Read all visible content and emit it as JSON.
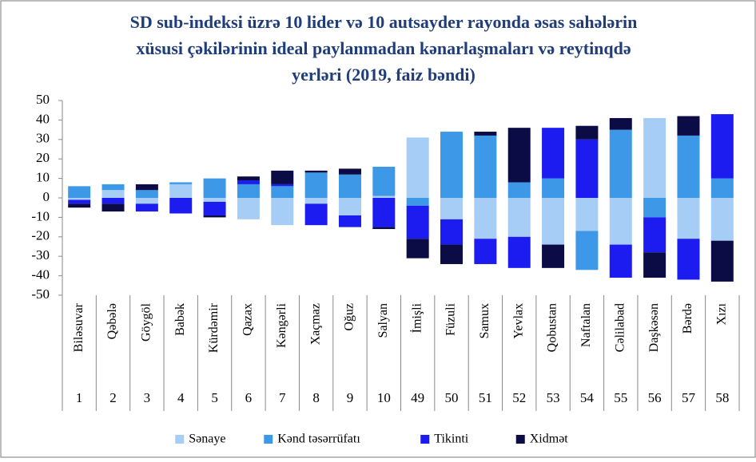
{
  "chart_data": {
    "type": "stacked_bar",
    "title": [
      "SD sub-indeksi üzrə 10 lider və 10 autsayder rayonda əsas sahələrin",
      "xüsusi çəkilərinin ideal paylanmadan kənarlaşmaları və reytinqdə",
      "yerləri (2019, faiz bəndi)"
    ],
    "categories": [
      "Biləsuvar",
      "Qəbələ",
      "Göygöl",
      "Babək",
      "Kürdəmir",
      "Qazax",
      "Kəngərli",
      "Xaçmaz",
      "Oğuz",
      "Salyan",
      "İmişli",
      "Füzuli",
      "Samux",
      "Yevlax",
      "Qobustan",
      "Naftalan",
      "Cəlilabad",
      "Daşkəsən",
      "Bərdə",
      "Xızı"
    ],
    "ranks": [
      1,
      2,
      3,
      4,
      5,
      6,
      7,
      8,
      9,
      10,
      49,
      50,
      51,
      52,
      53,
      54,
      55,
      56,
      57,
      58
    ],
    "series": [
      {
        "name": "Sənaye",
        "color": "#a6cdf5",
        "values": [
          -1,
          4,
          -3,
          7,
          -2,
          -11,
          -14,
          -3,
          -9,
          1,
          31,
          -11,
          -21,
          -20,
          -24,
          -17,
          -24,
          41,
          -21,
          -22
        ]
      },
      {
        "name": "Kənd təsərrüfatı",
        "color": "#3d98e8",
        "values": [
          6,
          3,
          4,
          1,
          10,
          7,
          6,
          13,
          12,
          15,
          -4,
          34,
          32,
          8,
          10,
          -20,
          35,
          -10,
          32,
          10
        ]
      },
      {
        "name": "Tikinti",
        "color": "#1c1cf0",
        "values": [
          -2,
          -3,
          -4,
          -8,
          -7,
          2,
          1,
          -11,
          -6,
          -15,
          -17,
          -13,
          -13,
          -16,
          26,
          30,
          -17,
          -18,
          -21,
          33
        ]
      },
      {
        "name": "Xidmət",
        "color": "#0b0b45",
        "values": [
          -2,
          -4,
          3,
          0,
          -1,
          2,
          7,
          1,
          3,
          -1,
          -10,
          -10,
          2,
          28,
          -12,
          7,
          6,
          -13,
          10,
          -21
        ]
      }
    ],
    "ylim": [
      -50,
      50
    ],
    "yticks": [
      -50,
      -40,
      -30,
      -20,
      -10,
      0,
      10,
      20,
      30,
      40,
      50
    ],
    "legend": "bottom"
  }
}
